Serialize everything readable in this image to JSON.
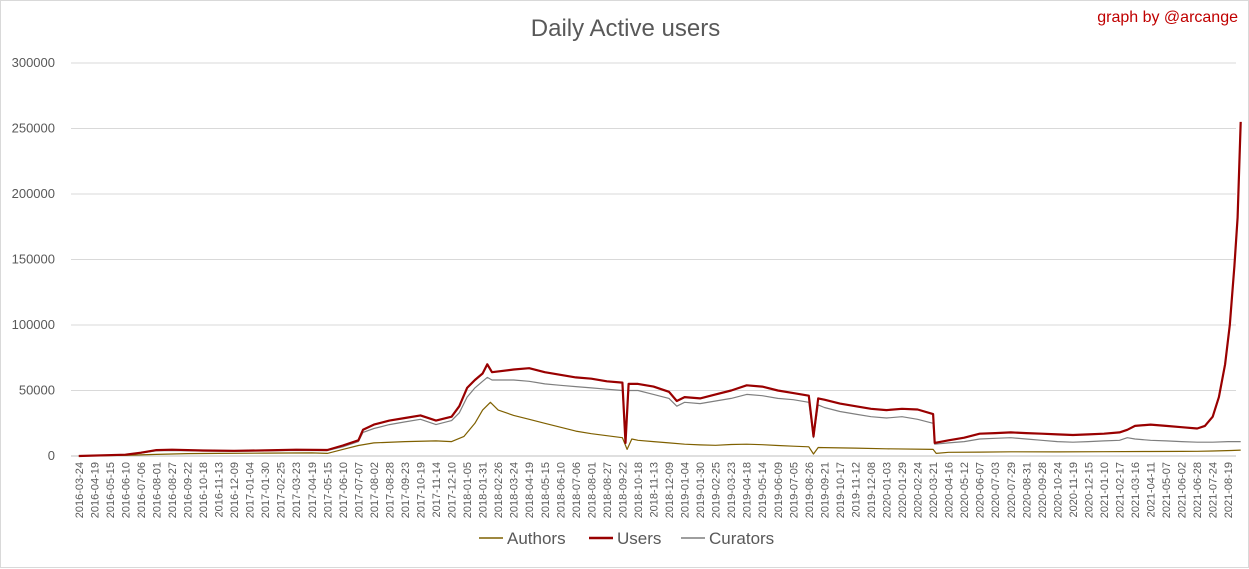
{
  "chart_data": {
    "type": "line",
    "title": "Daily Active users",
    "credit": "graph by @arcange",
    "xlabel": "",
    "ylabel": "",
    "ylim": [
      0,
      300000
    ],
    "yticks": [
      0,
      50000,
      100000,
      150000,
      200000,
      250000,
      300000
    ],
    "ytick_labels": [
      "0",
      "50000",
      "100000",
      "150000",
      "200000",
      "250000",
      "300000"
    ],
    "grid": true,
    "legend_position": "bottom",
    "xtick_labels": [
      "2016-03-24",
      "2016-04-19",
      "2016-05-15",
      "2016-06-10",
      "2016-07-06",
      "2016-08-01",
      "2016-08-27",
      "2016-09-22",
      "2016-10-18",
      "2016-11-13",
      "2016-12-09",
      "2017-01-04",
      "2017-01-30",
      "2017-02-25",
      "2017-03-23",
      "2017-04-19",
      "2017-05-15",
      "2017-06-10",
      "2017-07-07",
      "2017-08-02",
      "2017-08-28",
      "2017-09-23",
      "2017-10-19",
      "2017-11-14",
      "2017-12-10",
      "2018-01-05",
      "2018-01-31",
      "2018-02-26",
      "2018-03-24",
      "2018-04-19",
      "2018-05-15",
      "2018-06-10",
      "2018-07-06",
      "2018-08-01",
      "2018-08-27",
      "2018-09-22",
      "2018-10-18",
      "2018-11-13",
      "2018-12-09",
      "2019-01-04",
      "2019-01-30",
      "2019-02-25",
      "2019-03-23",
      "2019-04-18",
      "2019-05-14",
      "2019-06-09",
      "2019-07-05",
      "2019-08-26",
      "2019-09-21",
      "2019-10-17",
      "2019-11-12",
      "2019-12-08",
      "2020-01-03",
      "2020-01-29",
      "2020-02-24",
      "2020-03-21",
      "2020-04-16",
      "2020-05-12",
      "2020-06-07",
      "2020-07-03",
      "2020-07-29",
      "2020-08-31",
      "2020-09-28",
      "2020-10-24",
      "2020-11-19",
      "2020-12-15",
      "2021-01-10",
      "2021-02-17",
      "2021-03-16",
      "2021-04-11",
      "2021-05-07",
      "2021-06-02",
      "2021-06-28",
      "2021-07-24",
      "2021-08-19"
    ],
    "series": [
      {
        "name": "Authors",
        "color": "#7f6000",
        "points": [
          [
            0,
            0
          ],
          [
            3,
            500
          ],
          [
            5,
            1200
          ],
          [
            7,
            1800
          ],
          [
            9,
            2000
          ],
          [
            12,
            2200
          ],
          [
            15,
            2400
          ],
          [
            16,
            2000
          ],
          [
            17,
            5000
          ],
          [
            18,
            8000
          ],
          [
            19,
            10000
          ],
          [
            21,
            11000
          ],
          [
            23,
            11500
          ],
          [
            24,
            11000
          ],
          [
            24.8,
            15000
          ],
          [
            25.5,
            25000
          ],
          [
            26,
            35000
          ],
          [
            26.5,
            41000
          ],
          [
            27,
            35000
          ],
          [
            28,
            31000
          ],
          [
            29,
            28000
          ],
          [
            30,
            25000
          ],
          [
            31,
            22000
          ],
          [
            32,
            19000
          ],
          [
            33,
            17000
          ],
          [
            34,
            15500
          ],
          [
            35,
            14000
          ],
          [
            35.3,
            5000
          ],
          [
            35.6,
            13000
          ],
          [
            36,
            12000
          ],
          [
            37,
            11000
          ],
          [
            38,
            10000
          ],
          [
            39,
            9000
          ],
          [
            40,
            8500
          ],
          [
            41,
            8200
          ],
          [
            42,
            8800
          ],
          [
            43,
            9000
          ],
          [
            44,
            8600
          ],
          [
            45,
            8000
          ],
          [
            46,
            7500
          ],
          [
            47,
            7000
          ],
          [
            47.3,
            1500
          ],
          [
            47.6,
            6500
          ],
          [
            48,
            6400
          ],
          [
            50,
            6000
          ],
          [
            52,
            5500
          ],
          [
            55,
            5000
          ],
          [
            55.2,
            2000
          ],
          [
            56,
            2800
          ],
          [
            58,
            3000
          ],
          [
            60,
            3200
          ],
          [
            63,
            3100
          ],
          [
            66,
            3300
          ],
          [
            69,
            3400
          ],
          [
            71,
            3500
          ],
          [
            72,
            3600
          ],
          [
            73,
            3800
          ],
          [
            74.2,
            4200
          ],
          [
            74.8,
            4500
          ]
        ]
      },
      {
        "name": "Users",
        "color": "#990000",
        "points": [
          [
            0,
            0
          ],
          [
            3,
            1000
          ],
          [
            4,
            2500
          ],
          [
            5,
            4500
          ],
          [
            6,
            4800
          ],
          [
            8,
            4200
          ],
          [
            10,
            4000
          ],
          [
            12,
            4300
          ],
          [
            14,
            4800
          ],
          [
            16,
            4600
          ],
          [
            17,
            8000
          ],
          [
            18,
            12000
          ],
          [
            18.3,
            20000
          ],
          [
            19,
            24000
          ],
          [
            20,
            27000
          ],
          [
            21,
            29000
          ],
          [
            22,
            31000
          ],
          [
            23,
            27000
          ],
          [
            24,
            30000
          ],
          [
            24.5,
            38000
          ],
          [
            25,
            52000
          ],
          [
            25.5,
            58000
          ],
          [
            26,
            63000
          ],
          [
            26.3,
            70000
          ],
          [
            26.6,
            64000
          ],
          [
            28,
            66000
          ],
          [
            29,
            67000
          ],
          [
            30,
            64000
          ],
          [
            31,
            62000
          ],
          [
            32,
            60000
          ],
          [
            33,
            59000
          ],
          [
            34,
            57000
          ],
          [
            35,
            56000
          ],
          [
            35.2,
            10000
          ],
          [
            35.4,
            55000
          ],
          [
            36,
            55000
          ],
          [
            37,
            53000
          ],
          [
            38,
            49000
          ],
          [
            38.5,
            42000
          ],
          [
            39,
            45000
          ],
          [
            40,
            44000
          ],
          [
            41,
            47000
          ],
          [
            42,
            50000
          ],
          [
            43,
            54000
          ],
          [
            44,
            53000
          ],
          [
            45,
            50000
          ],
          [
            46,
            48000
          ],
          [
            47,
            46000
          ],
          [
            47.3,
            15000
          ],
          [
            47.6,
            44000
          ],
          [
            48,
            43000
          ],
          [
            49,
            40000
          ],
          [
            50,
            38000
          ],
          [
            51,
            36000
          ],
          [
            52,
            35000
          ],
          [
            53,
            36000
          ],
          [
            54,
            35500
          ],
          [
            55,
            32000
          ],
          [
            55.1,
            10000
          ],
          [
            56,
            12000
          ],
          [
            57,
            14000
          ],
          [
            58,
            17000
          ],
          [
            59,
            17500
          ],
          [
            60,
            18000
          ],
          [
            61,
            17500
          ],
          [
            62,
            17000
          ],
          [
            63,
            16500
          ],
          [
            64,
            16000
          ],
          [
            65,
            16500
          ],
          [
            66,
            17000
          ],
          [
            67,
            18000
          ],
          [
            67.5,
            20000
          ],
          [
            68,
            23000
          ],
          [
            69,
            24000
          ],
          [
            70,
            23000
          ],
          [
            71,
            22000
          ],
          [
            72,
            21000
          ],
          [
            72.5,
            23000
          ],
          [
            73,
            30000
          ],
          [
            73.4,
            45000
          ],
          [
            73.8,
            70000
          ],
          [
            74.1,
            100000
          ],
          [
            74.4,
            145000
          ],
          [
            74.6,
            182000
          ],
          [
            74.8,
            255000
          ]
        ]
      },
      {
        "name": "Curators",
        "color": "#7f7f7f",
        "points": [
          [
            0,
            0
          ],
          [
            3,
            900
          ],
          [
            4,
            2200
          ],
          [
            5,
            4000
          ],
          [
            6,
            4200
          ],
          [
            8,
            3800
          ],
          [
            10,
            3600
          ],
          [
            12,
            3900
          ],
          [
            14,
            4300
          ],
          [
            16,
            4100
          ],
          [
            17,
            7000
          ],
          [
            18,
            11000
          ],
          [
            18.3,
            18000
          ],
          [
            19,
            21000
          ],
          [
            20,
            24000
          ],
          [
            21,
            26000
          ],
          [
            22,
            28000
          ],
          [
            23,
            24000
          ],
          [
            24,
            27000
          ],
          [
            24.5,
            33000
          ],
          [
            25,
            45000
          ],
          [
            25.5,
            52000
          ],
          [
            26,
            57000
          ],
          [
            26.3,
            60000
          ],
          [
            26.6,
            58000
          ],
          [
            28,
            58000
          ],
          [
            29,
            57000
          ],
          [
            30,
            55000
          ],
          [
            31,
            54000
          ],
          [
            32,
            53000
          ],
          [
            33,
            52000
          ],
          [
            34,
            51000
          ],
          [
            35,
            50000
          ],
          [
            35.2,
            12000
          ],
          [
            35.4,
            50000
          ],
          [
            36,
            50000
          ],
          [
            37,
            47000
          ],
          [
            38,
            44000
          ],
          [
            38.5,
            38000
          ],
          [
            39,
            41000
          ],
          [
            40,
            40000
          ],
          [
            41,
            42000
          ],
          [
            42,
            44000
          ],
          [
            43,
            47000
          ],
          [
            44,
            46000
          ],
          [
            45,
            44000
          ],
          [
            46,
            43000
          ],
          [
            47,
            41000
          ],
          [
            47.3,
            14000
          ],
          [
            47.6,
            39000
          ],
          [
            48,
            37000
          ],
          [
            49,
            34000
          ],
          [
            50,
            32000
          ],
          [
            51,
            30000
          ],
          [
            52,
            29000
          ],
          [
            53,
            30000
          ],
          [
            54,
            28000
          ],
          [
            55,
            25000
          ],
          [
            55.1,
            9000
          ],
          [
            56,
            10000
          ],
          [
            57,
            11000
          ],
          [
            58,
            13000
          ],
          [
            59,
            13500
          ],
          [
            60,
            14000
          ],
          [
            61,
            13000
          ],
          [
            62,
            12000
          ],
          [
            63,
            11000
          ],
          [
            64,
            10500
          ],
          [
            65,
            11000
          ],
          [
            66,
            11500
          ],
          [
            67,
            12000
          ],
          [
            67.5,
            14000
          ],
          [
            68,
            13000
          ],
          [
            69,
            12000
          ],
          [
            70,
            11500
          ],
          [
            71,
            11000
          ],
          [
            72,
            10500
          ],
          [
            73,
            10500
          ],
          [
            74,
            11000
          ],
          [
            74.8,
            11000
          ]
        ]
      }
    ]
  }
}
